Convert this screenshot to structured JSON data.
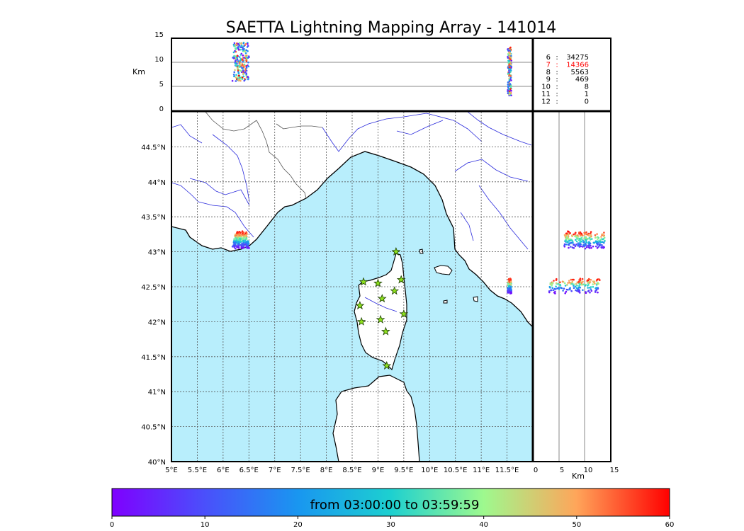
{
  "title": "SAETTA Lightning Mapping Array - 141014",
  "top_panel": {
    "ylabel": "Km",
    "yticks": [
      "15",
      "10",
      "5",
      "0"
    ]
  },
  "map": {
    "lat_ticks": [
      "44.5°N",
      "44°N",
      "43.5°N",
      "43°N",
      "42.5°N",
      "42°N",
      "41.5°N",
      "41°N",
      "40.5°N",
      "40°N"
    ],
    "lon_ticks": [
      "5°E",
      "5.5°E",
      "6°E",
      "6.5°E",
      "7°E",
      "7.5°E",
      "8°E",
      "8.5°E",
      "9°E",
      "9.5°E",
      "10°E",
      "10.5°E",
      "11°E",
      "11.5°E"
    ],
    "colors": {
      "sea": "#b8eefc",
      "land": "#ffffff",
      "coast": "#000000",
      "rivers": "#2a2adc",
      "borders": "#555555",
      "stations": "#8ee01e"
    }
  },
  "side_panel": {
    "xlabel": "Km",
    "xticks": [
      "0",
      "5",
      "10",
      "15"
    ]
  },
  "stats": [
    {
      "k": "6",
      "v": "34275",
      "color": "#000000"
    },
    {
      "k": "7",
      "v": "14366",
      "color": "#ff0000"
    },
    {
      "k": "8",
      "v": "5563",
      "color": "#000000"
    },
    {
      "k": "9",
      "v": "469",
      "color": "#000000"
    },
    {
      "k": "10",
      "v": "8",
      "color": "#000000"
    },
    {
      "k": "11",
      "v": "1",
      "color": "#000000"
    },
    {
      "k": "12",
      "v": "0",
      "color": "#000000"
    }
  ],
  "colorbar": {
    "label": "from 03:00:00 to 03:59:59",
    "ticks": [
      "0",
      "10",
      "20",
      "30",
      "40",
      "50",
      "60"
    ],
    "min": 0,
    "max": 60,
    "colormap": "rainbow"
  },
  "chart_data": {
    "type": "scatter",
    "title": "SAETTA Lightning Mapping Array - 141014",
    "xlabel": "",
    "ylabel": "",
    "lon_range": [
      5,
      12
    ],
    "lat_range": [
      40,
      45
    ],
    "height_range_km": [
      0,
      15
    ],
    "color_range_min": [
      0,
      60
    ],
    "grid": true,
    "clusters": [
      {
        "lon": 6.35,
        "lat": 43.15,
        "alt_km": [
          6,
          14
        ]
      },
      {
        "lon": 11.55,
        "lat": 42.5,
        "alt_km": [
          3,
          13
        ]
      }
    ],
    "stations": [
      {
        "lon": 9.35,
        "lat": 43.0
      },
      {
        "lon": 8.72,
        "lat": 42.57
      },
      {
        "lon": 9.0,
        "lat": 42.55
      },
      {
        "lon": 9.45,
        "lat": 42.6
      },
      {
        "lon": 9.08,
        "lat": 42.33
      },
      {
        "lon": 9.32,
        "lat": 42.44
      },
      {
        "lon": 8.65,
        "lat": 42.23
      },
      {
        "lon": 8.68,
        "lat": 42.0
      },
      {
        "lon": 9.05,
        "lat": 42.03
      },
      {
        "lon": 9.5,
        "lat": 42.11
      },
      {
        "lon": 9.15,
        "lat": 41.86
      },
      {
        "lon": 9.17,
        "lat": 41.37
      }
    ]
  }
}
